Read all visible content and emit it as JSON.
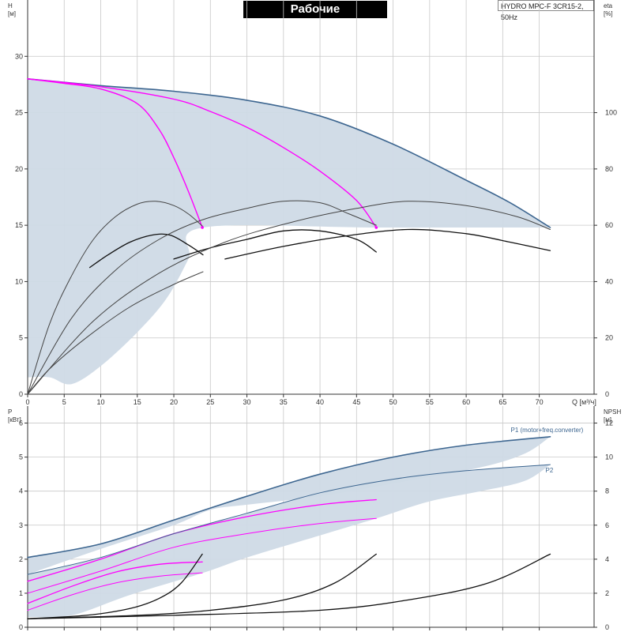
{
  "header": {
    "title": "Рабочие характеристики",
    "model": "HYDRO MPC-F 3CR15-2, 50Hz"
  },
  "colors": {
    "envelope_fill": "#cfdae6",
    "envelope_edge": "#3d6690",
    "max_curve": "#3d6690",
    "reduced_speed": "#ff00ff",
    "efficiency": "#444444",
    "efficiency_dark": "#111111",
    "grid": "#c8c8c8"
  },
  "chart_data": [
    {
      "name": "head-efficiency",
      "type": "line",
      "xlabel": "Q [м³/ч]",
      "ylabel_left": "H",
      "ylabel_left_unit": "[м]",
      "ylabel_right": "eta",
      "ylabel_right_unit": "[%]",
      "xlim": [
        0,
        77.5
      ],
      "ylim": [
        0,
        35
      ],
      "ylim_right": [
        0,
        140
      ],
      "xticks": [
        0,
        5,
        10,
        15,
        20,
        25,
        30,
        35,
        40,
        45,
        50,
        55,
        60,
        65,
        70
      ],
      "yticks_left": [
        0,
        5,
        10,
        15,
        20,
        25,
        30
      ],
      "yticks_right": [
        0,
        20,
        40,
        60,
        80,
        100
      ],
      "grid": true,
      "envelope": {
        "upper": [
          [
            0,
            28
          ],
          [
            10,
            27.4
          ],
          [
            20,
            26.9
          ],
          [
            30,
            26.1
          ],
          [
            40,
            24.7
          ],
          [
            50,
            22.2
          ],
          [
            60,
            19
          ],
          [
            66,
            17
          ],
          [
            71.5,
            14.8
          ]
        ],
        "lower": [
          [
            71.5,
            14.8
          ],
          [
            48,
            14.8
          ],
          [
            24,
            14.8
          ],
          [
            22,
            12
          ],
          [
            19,
            8.5
          ],
          [
            15,
            5.5
          ],
          [
            10,
            2.5
          ],
          [
            6,
            0.9
          ],
          [
            3,
            1.5
          ],
          [
            0,
            1.5
          ]
        ]
      },
      "head_curves": [
        {
          "speed": "max",
          "points": [
            [
              0,
              28
            ],
            [
              10,
              27.4
            ],
            [
              20,
              26.9
            ],
            [
              30,
              26.1
            ],
            [
              40,
              24.7
            ],
            [
              50,
              22.2
            ],
            [
              60,
              19
            ],
            [
              66,
              17
            ],
            [
              71.5,
              14.8
            ]
          ]
        },
        {
          "speed": "reduced",
          "points": [
            [
              0,
              28
            ],
            [
              5,
              27.6
            ],
            [
              10,
              27.1
            ],
            [
              15,
              25.8
            ],
            [
              18,
              23.5
            ],
            [
              20,
              21
            ],
            [
              22,
              18
            ],
            [
              23.9,
              14.8
            ]
          ]
        },
        {
          "speed": "reduced",
          "points": [
            [
              0,
              28
            ],
            [
              10,
              27.3
            ],
            [
              20,
              26.2
            ],
            [
              25,
              25.1
            ],
            [
              30,
              23.7
            ],
            [
              35,
              21.9
            ],
            [
              40,
              19.8
            ],
            [
              45,
              17.2
            ],
            [
              47.7,
              14.8
            ]
          ]
        }
      ],
      "efficiency_curves": [
        {
          "points": [
            [
              0,
              0
            ],
            [
              3,
              25
            ],
            [
              6,
              42
            ],
            [
              9,
              55
            ],
            [
              12,
              63
            ],
            [
              15,
              67.5
            ],
            [
              17.5,
              68.5
            ],
            [
              20,
              67
            ],
            [
              22,
              64
            ],
            [
              24,
              59.5
            ]
          ]
        },
        {
          "points": [
            [
              8.5,
              45
            ],
            [
              11,
              49.5
            ],
            [
              14,
              54
            ],
            [
              17,
              56.5
            ],
            [
              19.5,
              56.5
            ],
            [
              22,
              53
            ],
            [
              24,
              49.5
            ]
          ]
        },
        {
          "points": [
            [
              0,
              0
            ],
            [
              6,
              27
            ],
            [
              12,
              44
            ],
            [
              18,
              55
            ],
            [
              24,
              62
            ],
            [
              30,
              66
            ],
            [
              35,
              68.5
            ],
            [
              40,
              68
            ],
            [
              44,
              64
            ],
            [
              47.7,
              60
            ]
          ]
        },
        {
          "points": [
            [
              20,
              48
            ],
            [
              25,
              52
            ],
            [
              30,
              55
            ],
            [
              35,
              58
            ],
            [
              40,
              58
            ],
            [
              45,
              55
            ],
            [
              47.7,
              50.5
            ]
          ]
        },
        {
          "points": [
            [
              0,
              0
            ],
            [
              9,
              26
            ],
            [
              18,
              43
            ],
            [
              27,
              54
            ],
            [
              36,
              61
            ],
            [
              45,
              66
            ],
            [
              52,
              68.5
            ],
            [
              60,
              67
            ],
            [
              67,
              63
            ],
            [
              71.5,
              58.5
            ]
          ]
        },
        {
          "points": [
            [
              27,
              48
            ],
            [
              35,
              52.5
            ],
            [
              43,
              56
            ],
            [
              52,
              58.5
            ],
            [
              60,
              57
            ],
            [
              66,
              54
            ],
            [
              71.5,
              51
            ]
          ]
        },
        {
          "points": [
            [
              0,
              0
            ],
            [
              3,
              9
            ],
            [
              8,
              20
            ],
            [
              14,
              31
            ],
            [
              20,
              39
            ],
            [
              24,
              43.5
            ]
          ]
        }
      ]
    },
    {
      "name": "power-npsh",
      "type": "line",
      "xlabel": "",
      "ylabel_left": "P",
      "ylabel_left_unit": "[кВт]",
      "ylabel_right": "NPSH",
      "ylabel_right_unit": "[м]",
      "xlim": [
        0,
        77.5
      ],
      "ylim": [
        0,
        6.5
      ],
      "ylim_right": [
        0,
        13
      ],
      "yticks_left": [
        0,
        1,
        2,
        3,
        4,
        5,
        6
      ],
      "yticks_right": [
        0,
        2,
        4,
        6,
        8,
        10,
        12
      ],
      "grid": true,
      "labels": {
        "p1": "P1 (motor+freq.converter)",
        "p2": "P2"
      },
      "envelope_p1": {
        "upper": [
          [
            0,
            2.05
          ],
          [
            10,
            2.45
          ],
          [
            20,
            3.15
          ],
          [
            30,
            3.85
          ],
          [
            40,
            4.5
          ],
          [
            50,
            5.0
          ],
          [
            60,
            5.35
          ],
          [
            71.5,
            5.6
          ]
        ],
        "lower": [
          [
            71.5,
            5.6
          ],
          [
            68,
            5.1
          ],
          [
            62,
            4.7
          ],
          [
            52,
            4.3
          ],
          [
            40,
            3.85
          ],
          [
            30,
            3.6
          ],
          [
            25,
            3.45
          ],
          [
            20,
            3.0
          ],
          [
            10,
            2.3
          ],
          [
            0,
            1.55
          ]
        ]
      },
      "envelope_p2": {
        "upper": [
          [
            0,
            1.55
          ],
          [
            10,
            2.05
          ],
          [
            20,
            2.75
          ],
          [
            30,
            3.35
          ],
          [
            40,
            3.95
          ],
          [
            50,
            4.35
          ],
          [
            60,
            4.6
          ],
          [
            71.5,
            4.78
          ]
        ],
        "lower": [
          [
            71.5,
            4.78
          ],
          [
            68,
            4.3
          ],
          [
            62,
            4.0
          ],
          [
            55,
            3.7
          ],
          [
            47.7,
            3.2
          ],
          [
            40,
            2.7
          ],
          [
            30,
            2.05
          ],
          [
            24,
            1.6
          ],
          [
            14,
            0.95
          ],
          [
            6,
            0.35
          ],
          [
            0,
            0.3
          ]
        ]
      },
      "p1_curves": [
        {
          "speed": "max",
          "points": [
            [
              0,
              2.05
            ],
            [
              10,
              2.45
            ],
            [
              20,
              3.15
            ],
            [
              30,
              3.85
            ],
            [
              40,
              4.5
            ],
            [
              50,
              5.0
            ],
            [
              60,
              5.35
            ],
            [
              71.5,
              5.6
            ]
          ]
        },
        {
          "speed": "reduced",
          "points": [
            [
              0,
              1.35
            ],
            [
              10,
              2.0
            ],
            [
              20,
              2.75
            ],
            [
              30,
              3.25
            ],
            [
              40,
              3.6
            ],
            [
              47.7,
              3.75
            ]
          ]
        },
        {
          "speed": "reduced",
          "points": [
            [
              0,
              0.7
            ],
            [
              6,
              1.2
            ],
            [
              12,
              1.62
            ],
            [
              18,
              1.85
            ],
            [
              23.9,
              1.92
            ]
          ]
        }
      ],
      "p2_curves": [
        {
          "speed": "max",
          "points": [
            [
              0,
              1.55
            ],
            [
              10,
              2.05
            ],
            [
              20,
              2.75
            ],
            [
              30,
              3.35
            ],
            [
              40,
              3.95
            ],
            [
              50,
              4.35
            ],
            [
              60,
              4.6
            ],
            [
              71.5,
              4.78
            ]
          ]
        },
        {
          "speed": "reduced",
          "points": [
            [
              0,
              1.0
            ],
            [
              10,
              1.65
            ],
            [
              20,
              2.35
            ],
            [
              30,
              2.75
            ],
            [
              40,
              3.05
            ],
            [
              47.7,
              3.2
            ]
          ]
        },
        {
          "speed": "reduced",
          "points": [
            [
              0,
              0.5
            ],
            [
              6,
              0.95
            ],
            [
              12,
              1.3
            ],
            [
              18,
              1.5
            ],
            [
              23.9,
              1.6
            ]
          ]
        }
      ],
      "npsh_curves": [
        {
          "points": [
            [
              0,
              0.5
            ],
            [
              8,
              0.7
            ],
            [
              14,
              1.1
            ],
            [
              18,
              1.7
            ],
            [
              21,
              2.6
            ],
            [
              23.9,
              4.3
            ]
          ]
        },
        {
          "points": [
            [
              0,
              0.5
            ],
            [
              15,
              0.7
            ],
            [
              25,
              1.0
            ],
            [
              35,
              1.6
            ],
            [
              42,
              2.6
            ],
            [
              47.7,
              4.3
            ]
          ]
        },
        {
          "points": [
            [
              0,
              0.5
            ],
            [
              20,
              0.7
            ],
            [
              40,
              1.0
            ],
            [
              52,
              1.6
            ],
            [
              63,
              2.6
            ],
            [
              71.5,
              4.3
            ]
          ]
        }
      ]
    }
  ]
}
